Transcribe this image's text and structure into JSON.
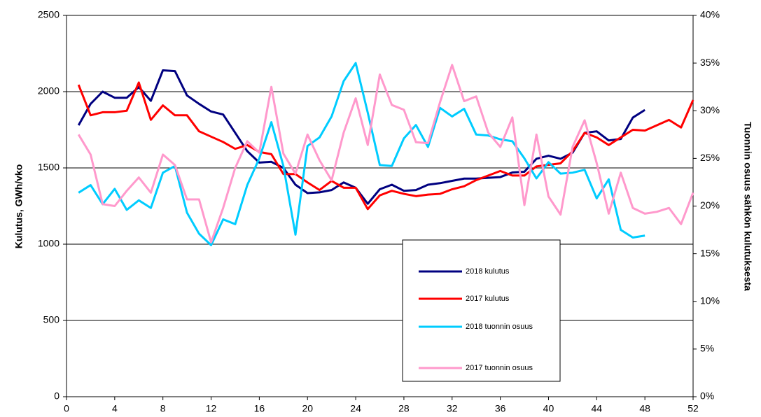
{
  "chart_data": {
    "type": "line",
    "y_label": "Kulutus, GWh/vko",
    "y2_label": "Tuonnin osuus sähkön kulutuksesta",
    "x": [
      1,
      2,
      3,
      4,
      5,
      6,
      7,
      8,
      9,
      10,
      11,
      12,
      13,
      14,
      15,
      16,
      17,
      18,
      19,
      20,
      21,
      22,
      23,
      24,
      25,
      26,
      27,
      28,
      29,
      30,
      31,
      32,
      33,
      34,
      35,
      36,
      37,
      38,
      39,
      40,
      41,
      42,
      43,
      44,
      45,
      46,
      47,
      48,
      49,
      50,
      51,
      52
    ],
    "xlim": [
      0,
      52
    ],
    "xticks": [
      0,
      4,
      8,
      12,
      16,
      20,
      24,
      28,
      32,
      36,
      40,
      44,
      48,
      52
    ],
    "ylim": [
      0,
      2500
    ],
    "yticks": [
      0,
      500,
      1000,
      1500,
      2000,
      2500
    ],
    "y2lim": [
      0,
      40
    ],
    "y2ticks": [
      {
        "value": 0,
        "label": "0%"
      },
      {
        "value": 5,
        "label": "5%"
      },
      {
        "value": 10,
        "label": "10%"
      },
      {
        "value": 15,
        "label": "15%"
      },
      {
        "value": 20,
        "label": "20%"
      },
      {
        "value": 25,
        "label": "25%"
      },
      {
        "value": 30,
        "label": "30%"
      },
      {
        "value": 35,
        "label": "35%"
      },
      {
        "value": 40,
        "label": "40%"
      }
    ],
    "grid": true,
    "series": [
      {
        "name": "2018 kulutus",
        "color": "#000080",
        "values": [
          1780,
          1920,
          2000,
          1960,
          1960,
          2030,
          1940,
          2140,
          2135,
          1975,
          1920,
          1870,
          1850,
          1730,
          1610,
          1535,
          1540,
          1500,
          1390,
          1335,
          1340,
          1355,
          1405,
          1370,
          1265,
          1360,
          1390,
          1350,
          1355,
          1390,
          1400,
          1415,
          1430,
          1430,
          1435,
          1440,
          1470,
          1475,
          1560,
          1580,
          1560,
          1600,
          1730,
          1740,
          1680,
          1690,
          1830,
          1880,
          null,
          null,
          null,
          null
        ]
      },
      {
        "name": "2017 kulutus",
        "color": "#ff0000",
        "values": [
          2045,
          1845,
          1865,
          1865,
          1875,
          2060,
          1815,
          1910,
          1845,
          1845,
          1740,
          1705,
          1670,
          1625,
          1650,
          1605,
          1590,
          1460,
          1460,
          1405,
          1355,
          1415,
          1370,
          1370,
          1230,
          1320,
          1350,
          1330,
          1315,
          1325,
          1330,
          1360,
          1380,
          1420,
          1450,
          1480,
          1450,
          1450,
          1510,
          1520,
          1530,
          1610,
          1730,
          1700,
          1650,
          1700,
          1750,
          1745,
          1780,
          1815,
          1765,
          1945
        ]
      },
      {
        "name": "2018 tuonnin osuus",
        "color": "#00ccff",
        "axis": "y2",
        "values": [
          21.4,
          22.2,
          20.2,
          21.8,
          19.6,
          20.6,
          19.8,
          23.5,
          24.2,
          19.3,
          17.1,
          15.9,
          18.6,
          18.1,
          22.2,
          25.0,
          28.8,
          24.2,
          17.0,
          26.3,
          27.2,
          29.4,
          33.1,
          35.0,
          29.8,
          24.3,
          24.2,
          27.1,
          28.5,
          26.2,
          30.3,
          29.4,
          30.2,
          27.5,
          27.4,
          27.0,
          26.8,
          25.0,
          22.9,
          24.6,
          23.4,
          23.5,
          23.8,
          20.8,
          22.8,
          17.5,
          16.7,
          16.9,
          null,
          null,
          null,
          null
        ]
      },
      {
        "name": "2017 tuonnin osuus",
        "color": "#ff99cc",
        "axis": "y2",
        "values": [
          27.5,
          25.4,
          20.2,
          20.0,
          21.6,
          23.0,
          21.4,
          25.4,
          24.3,
          20.7,
          20.7,
          16.2,
          19.8,
          24.0,
          26.8,
          25.6,
          32.5,
          25.5,
          23.4,
          27.5,
          24.8,
          22.7,
          27.7,
          31.3,
          26.4,
          33.8,
          30.6,
          30.1,
          26.7,
          26.6,
          30.9,
          34.8,
          31.0,
          31.5,
          27.7,
          26.2,
          29.3,
          20.1,
          27.5,
          21.0,
          19.1,
          26.2,
          29.0,
          24.5,
          19.2,
          23.5,
          19.8,
          19.2,
          19.4,
          19.8,
          18.1,
          21.4
        ]
      }
    ]
  }
}
